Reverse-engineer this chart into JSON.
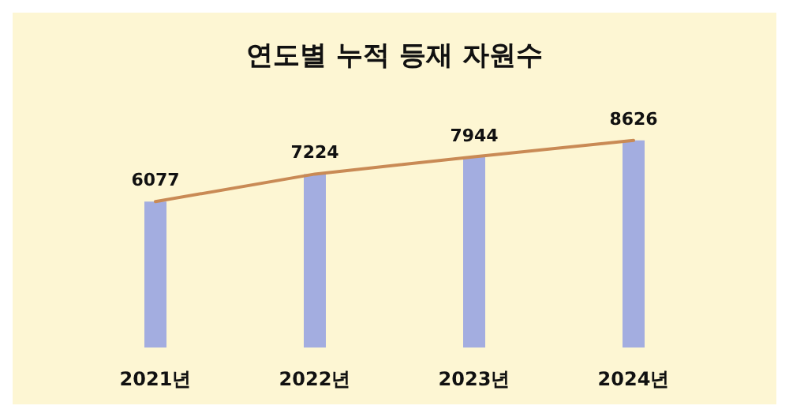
{
  "chart_data": {
    "type": "bar",
    "title": "연도별 누적 등재 자원수",
    "categories": [
      "2021년",
      "2022년",
      "2023년",
      "2024년"
    ],
    "series": [
      {
        "color": "#a3ade0",
        "values": [
          6077,
          7224,
          7944,
          8626
        ]
      },
      {
        "type": "line",
        "color": "#c98a55",
        "values": [
          6077,
          7224,
          7944,
          8626
        ],
        "value_labels": [
          null,
          null,
          null,
          null
        ]
      }
    ],
    "data_labels": true
  }
}
